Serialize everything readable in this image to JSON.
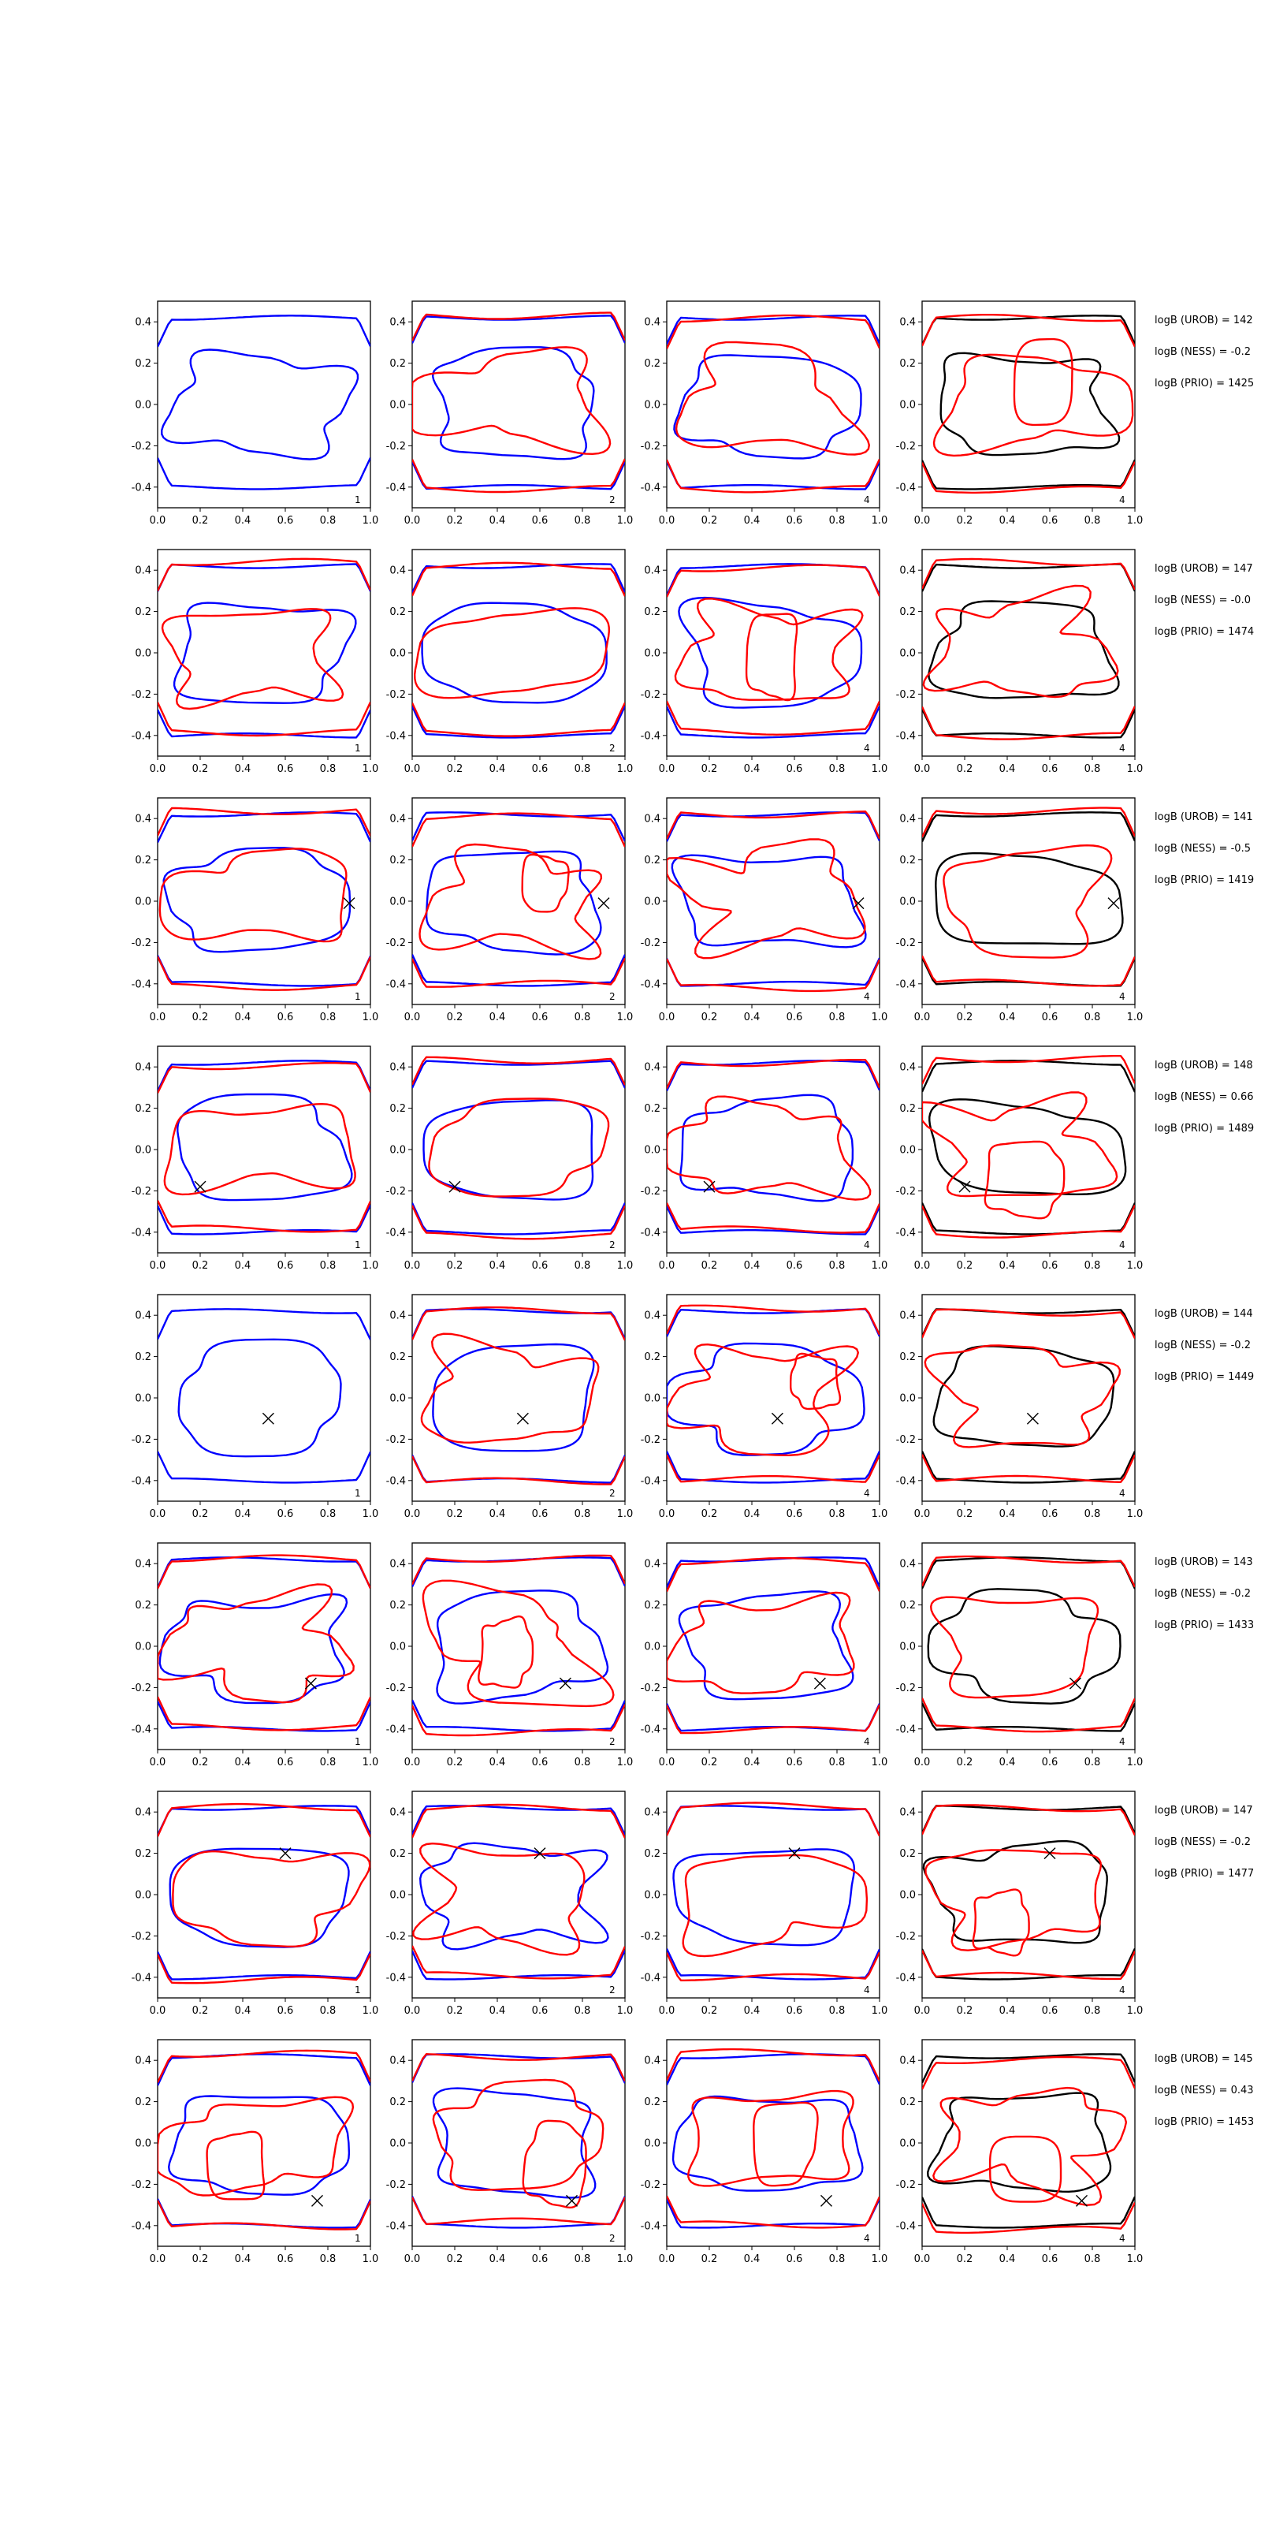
{
  "figure": {
    "colors": {
      "blue": "#0000ff",
      "red": "#ff0000",
      "black": "#000000",
      "axis": "#000000"
    },
    "row_count": 8,
    "col_count": 4
  },
  "chart_data": {
    "type": "contour_grid",
    "x_ticks": [
      "0.0",
      "0.2",
      "0.4",
      "0.6",
      "0.8",
      "1.0"
    ],
    "y_ticks": [
      "0.4",
      "0.2",
      "0.0",
      "-0.2",
      "-0.4"
    ],
    "xlim": [
      0.0,
      1.0
    ],
    "ylim": [
      -0.5,
      0.5
    ],
    "panel_labels": [
      "1",
      "2",
      "4",
      "4"
    ],
    "rows": [
      {
        "logB_UROB": "logB (UROB) = 142",
        "logB_NESS": "logB (NESS) = -0.2",
        "logB_PRIO": "logB (PRIO) = 1425",
        "marker": null
      },
      {
        "logB_UROB": "logB (UROB) = 147",
        "logB_NESS": "logB (NESS) = -0.0",
        "logB_PRIO": "logB (PRIO) = 1474",
        "marker": null
      },
      {
        "logB_UROB": "logB (UROB) = 141",
        "logB_NESS": "logB (NESS) = -0.5",
        "logB_PRIO": "logB (PRIO) = 1419",
        "marker": {
          "x": 0.9,
          "y": -0.01
        }
      },
      {
        "logB_UROB": "logB (UROB) = 148",
        "logB_NESS": "logB (NESS) = 0.66",
        "logB_PRIO": "logB (PRIO) = 1489",
        "marker": {
          "x": 0.2,
          "y": -0.18
        }
      },
      {
        "logB_UROB": "logB (UROB) = 144",
        "logB_NESS": "logB (NESS) = -0.2",
        "logB_PRIO": "logB (PRIO) = 1449",
        "marker": {
          "x": 0.52,
          "y": -0.1
        }
      },
      {
        "logB_UROB": "logB (UROB) = 143",
        "logB_NESS": "logB (NESS) = -0.2",
        "logB_PRIO": "logB (PRIO) = 1433",
        "marker": {
          "x": 0.72,
          "y": -0.18
        }
      },
      {
        "logB_UROB": "logB (UROB) = 147",
        "logB_NESS": "logB (NESS) = -0.2",
        "logB_PRIO": "logB (PRIO) = 1477",
        "marker": {
          "x": 0.6,
          "y": 0.2
        }
      },
      {
        "logB_UROB": "logB (UROB) = 145",
        "logB_NESS": "logB (NESS) = 0.43",
        "logB_PRIO": "logB (PRIO) = 1453",
        "marker": {
          "x": 0.75,
          "y": -0.28
        }
      }
    ]
  }
}
